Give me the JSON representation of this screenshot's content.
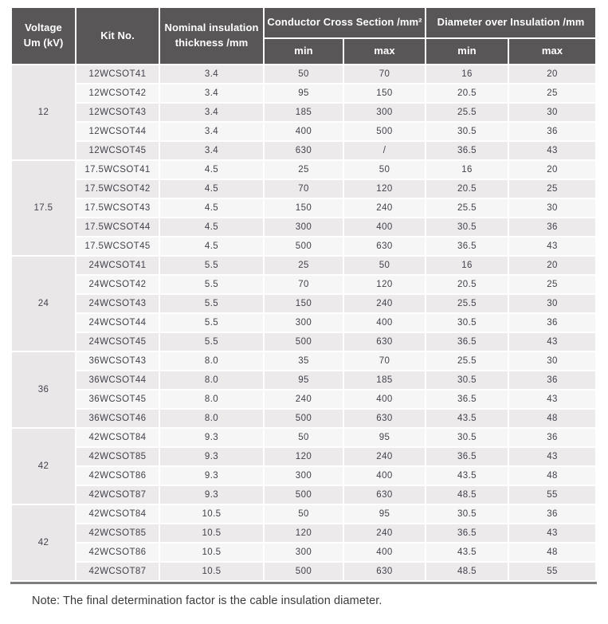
{
  "table": {
    "headers": {
      "voltage": "Voltage\nUm (kV)",
      "kit_no": "Kit No.",
      "nominal_thickness": "Nominal insulation\nthickness /mm",
      "conductor_cross_section": "Conductor Cross Section /mm²",
      "diameter_over_insulation": "Diameter over Insulation /mm",
      "min": "min",
      "max": "max"
    },
    "groups": [
      {
        "voltage": "12",
        "rows": [
          [
            "12WCSOT41",
            "3.4",
            "50",
            "70",
            "16",
            "20"
          ],
          [
            "12WCSOT42",
            "3.4",
            "95",
            "150",
            "20.5",
            "25"
          ],
          [
            "12WCSOT43",
            "3.4",
            "185",
            "300",
            "25.5",
            "30"
          ],
          [
            "12WCSOT44",
            "3.4",
            "400",
            "500",
            "30.5",
            "36"
          ],
          [
            "12WCSOT45",
            "3.4",
            "630",
            "/",
            "36.5",
            "43"
          ]
        ]
      },
      {
        "voltage": "17.5",
        "rows": [
          [
            "17.5WCSOT41",
            "4.5",
            "25",
            "50",
            "16",
            "20"
          ],
          [
            "17.5WCSOT42",
            "4.5",
            "70",
            "120",
            "20.5",
            "25"
          ],
          [
            "17.5WCSOT43",
            "4.5",
            "150",
            "240",
            "25.5",
            "30"
          ],
          [
            "17.5WCSOT44",
            "4.5",
            "300",
            "400",
            "30.5",
            "36"
          ],
          [
            "17.5WCSOT45",
            "4.5",
            "500",
            "630",
            "36.5",
            "43"
          ]
        ]
      },
      {
        "voltage": "24",
        "rows": [
          [
            "24WCSOT41",
            "5.5",
            "25",
            "50",
            "16",
            "20"
          ],
          [
            "24WCSOT42",
            "5.5",
            "70",
            "120",
            "20.5",
            "25"
          ],
          [
            "24WCSOT43",
            "5.5",
            "150",
            "240",
            "25.5",
            "30"
          ],
          [
            "24WCSOT44",
            "5.5",
            "300",
            "400",
            "30.5",
            "36"
          ],
          [
            "24WCSOT45",
            "5.5",
            "500",
            "630",
            "36.5",
            "43"
          ]
        ]
      },
      {
        "voltage": "36",
        "rows": [
          [
            "36WCSOT43",
            "8.0",
            "35",
            "70",
            "25.5",
            "30"
          ],
          [
            "36WCSOT44",
            "8.0",
            "95",
            "185",
            "30.5",
            "36"
          ],
          [
            "36WCSOT45",
            "8.0",
            "240",
            "400",
            "36.5",
            "43"
          ],
          [
            "36WCSOT46",
            "8.0",
            "500",
            "630",
            "43.5",
            "48"
          ]
        ]
      },
      {
        "voltage": "42",
        "rows": [
          [
            "42WCSOT84",
            "9.3",
            "50",
            "95",
            "30.5",
            "36"
          ],
          [
            "42WCSOT85",
            "9.3",
            "120",
            "240",
            "36.5",
            "43"
          ],
          [
            "42WCSOT86",
            "9.3",
            "300",
            "400",
            "43.5",
            "48"
          ],
          [
            "42WCSOT87",
            "9.3",
            "500",
            "630",
            "48.5",
            "55"
          ]
        ]
      },
      {
        "voltage": "42",
        "rows": [
          [
            "42WCSOT84",
            "10.5",
            "50",
            "95",
            "30.5",
            "36"
          ],
          [
            "42WCSOT85",
            "10.5",
            "120",
            "240",
            "36.5",
            "43"
          ],
          [
            "42WCSOT86",
            "10.5",
            "300",
            "400",
            "43.5",
            "48"
          ],
          [
            "42WCSOT87",
            "10.5",
            "500",
            "630",
            "48.5",
            "55"
          ]
        ]
      }
    ]
  },
  "note": "Note: The final determination factor is the cable insulation diameter.",
  "colors": {
    "header_bg": "#595657",
    "header_text": "#ffffff",
    "row_dark_bg": "#eceaeb",
    "row_light_bg": "#f7f6f6",
    "voltage_cell_bg": "#e9e7e8",
    "data_text": "#43424c",
    "note_text": "#3b3b3b",
    "bottom_line": "#807d7e"
  }
}
